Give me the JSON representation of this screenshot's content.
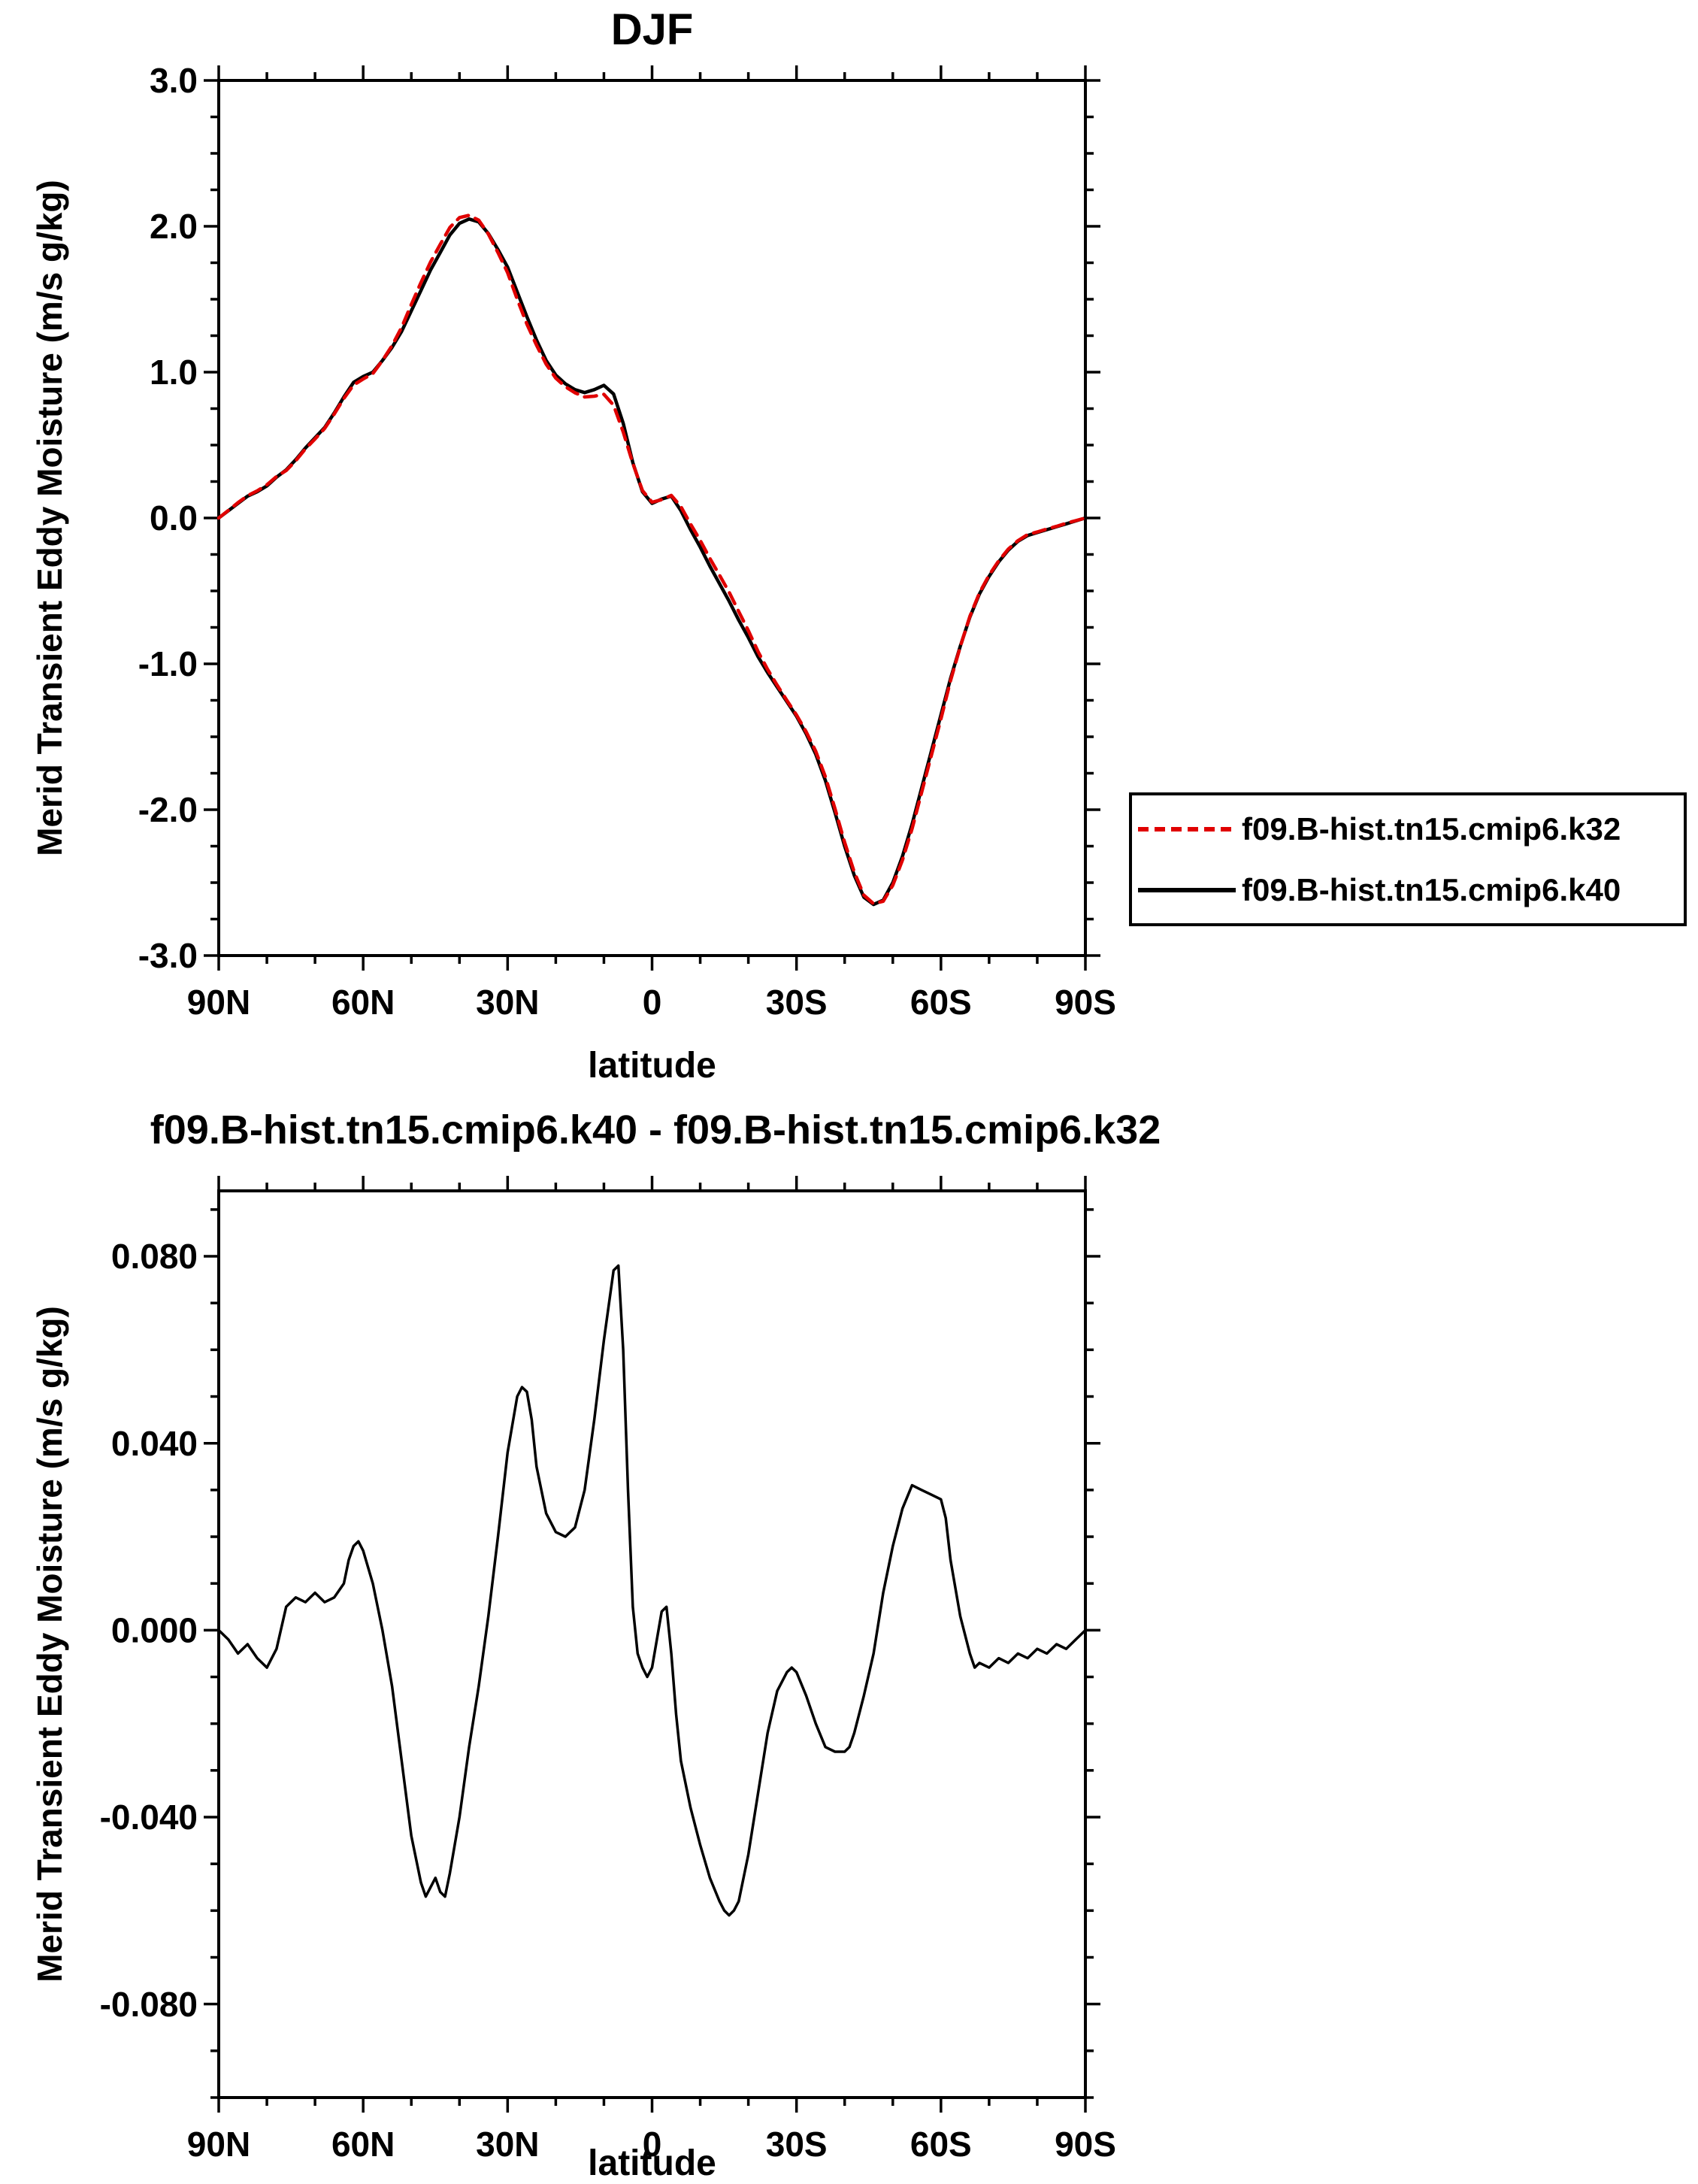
{
  "chart_data": [
    {
      "id": "top",
      "type": "line",
      "title": "DJF",
      "xlabel": "latitude",
      "ylabel": "Merid Transient Eddy Moisture (m/s g/kg)",
      "xlim": [
        90,
        -90
      ],
      "ylim": [
        -3.0,
        3.0
      ],
      "grid": false,
      "legend_position": "outside-right",
      "x_ticks": {
        "values": [
          90,
          60,
          30,
          0,
          -30,
          -60,
          -90
        ],
        "labels": [
          "90N",
          "60N",
          "30N",
          "0",
          "30S",
          "60S",
          "90S"
        ],
        "minor_step": 10
      },
      "y_ticks": {
        "values": [
          3.0,
          2.0,
          1.0,
          0.0,
          -1.0,
          -2.0,
          -3.0
        ],
        "labels": [
          "3.0",
          "2.0",
          "1.0",
          "0.0",
          "-1.0",
          "-2.0",
          "-3.0"
        ],
        "minor_step": 0.25
      },
      "series": [
        {
          "name": "f09.B-hist.tn15.cmip6.k32",
          "color": "#e00000",
          "style": "dashed",
          "x": [
            90,
            88,
            86,
            84,
            82,
            80,
            78,
            76,
            74,
            72,
            70,
            68,
            66,
            64,
            62,
            60,
            58,
            56,
            54,
            52,
            50,
            48,
            46,
            44,
            42,
            40,
            38,
            36,
            34,
            32,
            30,
            28,
            26,
            24,
            22,
            20,
            18,
            16,
            14,
            12,
            10,
            8,
            6,
            4,
            2,
            0,
            -2,
            -4,
            -6,
            -8,
            -10,
            -12,
            -14,
            -16,
            -18,
            -20,
            -22,
            -24,
            -26,
            -28,
            -30,
            -32,
            -34,
            -36,
            -38,
            -40,
            -42,
            -44,
            -46,
            -48,
            -50,
            -52,
            -54,
            -56,
            -58,
            -60,
            -62,
            -64,
            -66,
            -68,
            -70,
            -72,
            -74,
            -76,
            -78,
            -80,
            -82,
            -84,
            -86,
            -88,
            -90
          ],
          "y": [
            0.0,
            0.052,
            0.105,
            0.153,
            0.186,
            0.228,
            0.284,
            0.325,
            0.393,
            0.474,
            0.542,
            0.614,
            0.713,
            0.82,
            0.912,
            0.953,
            0.99,
            1.08,
            1.182,
            1.308,
            1.464,
            1.614,
            1.755,
            1.876,
            1.992,
            2.06,
            2.075,
            2.042,
            1.947,
            1.82,
            1.682,
            1.5,
            1.329,
            1.185,
            1.055,
            0.959,
            0.9,
            0.858,
            0.83,
            0.835,
            0.848,
            0.773,
            0.59,
            0.375,
            0.188,
            0.108,
            0.126,
            0.155,
            0.078,
            -0.042,
            -0.154,
            -0.277,
            -0.392,
            -0.509,
            -0.642,
            -0.772,
            -0.915,
            -1.038,
            -1.147,
            -1.251,
            -1.351,
            -1.466,
            -1.6,
            -1.775,
            -1.994,
            -2.224,
            -2.428,
            -2.586,
            -2.645,
            -2.628,
            -2.518,
            -2.346,
            -2.131,
            -1.88,
            -1.629,
            -1.378,
            -1.115,
            -0.883,
            -0.675,
            -0.513,
            -0.392,
            -0.294,
            -0.213,
            -0.155,
            -0.114,
            -0.096,
            -0.075,
            -0.057,
            -0.036,
            -0.018,
            0.0
          ]
        },
        {
          "name": "f09.B-hist.tn15.cmip6.k40",
          "color": "#000000",
          "style": "solid",
          "x": [
            90,
            88,
            86,
            84,
            82,
            80,
            78,
            76,
            74,
            72,
            70,
            68,
            66,
            64,
            62,
            60,
            58,
            56,
            54,
            52,
            50,
            48,
            46,
            44,
            42,
            40,
            38,
            36,
            34,
            32,
            30,
            28,
            26,
            24,
            22,
            20,
            18,
            16,
            14,
            12,
            10,
            8,
            6,
            4,
            2,
            0,
            -2,
            -4,
            -6,
            -8,
            -10,
            -12,
            -14,
            -16,
            -18,
            -20,
            -22,
            -24,
            -26,
            -28,
            -30,
            -32,
            -34,
            -36,
            -38,
            -40,
            -42,
            -44,
            -46,
            -48,
            -50,
            -52,
            -54,
            -56,
            -58,
            -60,
            -62,
            -64,
            -66,
            -68,
            -70,
            -72,
            -74,
            -76,
            -78,
            -80,
            -82,
            -84,
            -86,
            -88,
            -90
          ],
          "y": [
            0.0,
            0.05,
            0.1,
            0.15,
            0.18,
            0.22,
            0.28,
            0.33,
            0.4,
            0.48,
            0.55,
            0.62,
            0.72,
            0.83,
            0.93,
            0.97,
            1.0,
            1.08,
            1.17,
            1.28,
            1.42,
            1.56,
            1.7,
            1.82,
            1.94,
            2.02,
            2.05,
            2.03,
            1.95,
            1.84,
            1.72,
            1.55,
            1.38,
            1.22,
            1.08,
            0.98,
            0.92,
            0.88,
            0.86,
            0.88,
            0.91,
            0.85,
            0.65,
            0.38,
            0.18,
            0.1,
            0.13,
            0.15,
            0.05,
            -0.08,
            -0.2,
            -0.33,
            -0.45,
            -0.57,
            -0.7,
            -0.82,
            -0.95,
            -1.06,
            -1.16,
            -1.26,
            -1.36,
            -1.48,
            -1.62,
            -1.8,
            -2.02,
            -2.25,
            -2.45,
            -2.6,
            -2.65,
            -2.62,
            -2.5,
            -2.32,
            -2.1,
            -1.85,
            -1.6,
            -1.35,
            -1.1,
            -0.88,
            -0.68,
            -0.52,
            -0.4,
            -0.3,
            -0.22,
            -0.16,
            -0.12,
            -0.1,
            -0.08,
            -0.06,
            -0.04,
            -0.02,
            0.0
          ]
        }
      ]
    },
    {
      "id": "bottom",
      "type": "line",
      "title": "f09.B-hist.tn15.cmip6.k40 - f09.B-hist.tn15.cmip6.k32",
      "xlabel": "latitude",
      "ylabel": "Merid Transient Eddy Moisture (m/s g/kg)",
      "xlim": [
        90,
        -90
      ],
      "ylim": [
        -0.1,
        0.094
      ],
      "grid": false,
      "x_ticks": {
        "values": [
          90,
          60,
          30,
          0,
          -30,
          -60,
          -90
        ],
        "labels": [
          "90N",
          "60N",
          "30N",
          "0",
          "30S",
          "60S",
          "90S"
        ],
        "minor_step": 10
      },
      "y_ticks": {
        "values": [
          0.08,
          0.04,
          0.0,
          -0.04,
          -0.08
        ],
        "labels": [
          "0.080",
          "0.040",
          "0.000",
          "-0.040",
          "-0.080"
        ],
        "minor_step": 0.01
      },
      "series": [
        {
          "name": "f09.B-hist.tn15.cmip6.k40 - f09.B-hist.tn15.cmip6.k32",
          "color": "#000000",
          "style": "solid",
          "x": [
            90,
            88,
            86,
            84,
            82,
            80,
            78,
            76,
            74,
            72,
            70,
            68,
            66,
            64,
            63,
            62,
            61,
            60,
            58,
            56,
            54,
            52,
            50,
            48,
            47,
            46,
            45,
            44,
            43,
            42,
            40,
            38,
            36,
            34,
            32,
            30,
            28,
            27,
            26,
            25,
            24,
            22,
            20,
            18,
            17,
            16,
            14,
            12,
            10,
            8,
            7,
            6,
            5,
            4,
            3,
            2,
            1,
            0,
            -1,
            -2,
            -3,
            -4,
            -5,
            -6,
            -8,
            -10,
            -12,
            -14,
            -15,
            -16,
            -17,
            -18,
            -20,
            -22,
            -24,
            -26,
            -28,
            -29,
            -30,
            -32,
            -34,
            -36,
            -38,
            -40,
            -41,
            -42,
            -44,
            -46,
            -48,
            -50,
            -52,
            -54,
            -56,
            -58,
            -60,
            -61,
            -62,
            -64,
            -66,
            -67,
            -68,
            -70,
            -72,
            -74,
            -76,
            -78,
            -80,
            -82,
            -84,
            -86,
            -88,
            -90
          ],
          "y": [
            0.0,
            -0.002,
            -0.005,
            -0.003,
            -0.006,
            -0.008,
            -0.004,
            0.005,
            0.007,
            0.006,
            0.008,
            0.006,
            0.007,
            0.01,
            0.015,
            0.018,
            0.019,
            0.017,
            0.01,
            0.0,
            -0.012,
            -0.028,
            -0.044,
            -0.054,
            -0.057,
            -0.055,
            -0.053,
            -0.056,
            -0.057,
            -0.052,
            -0.04,
            -0.025,
            -0.012,
            0.003,
            0.02,
            0.038,
            0.05,
            0.052,
            0.051,
            0.045,
            0.035,
            0.025,
            0.021,
            0.02,
            0.021,
            0.022,
            0.03,
            0.045,
            0.062,
            0.077,
            0.078,
            0.06,
            0.03,
            0.005,
            -0.005,
            -0.008,
            -0.01,
            -0.008,
            -0.002,
            0.004,
            0.005,
            -0.005,
            -0.018,
            -0.028,
            -0.038,
            -0.046,
            -0.053,
            -0.058,
            -0.06,
            -0.061,
            -0.06,
            -0.058,
            -0.048,
            -0.035,
            -0.022,
            -0.013,
            -0.009,
            -0.008,
            -0.009,
            -0.014,
            -0.02,
            -0.025,
            -0.026,
            -0.026,
            -0.025,
            -0.022,
            -0.014,
            -0.005,
            0.008,
            0.018,
            0.026,
            0.031,
            0.03,
            0.029,
            0.028,
            0.024,
            0.015,
            0.003,
            -0.005,
            -0.008,
            -0.007,
            -0.008,
            -0.006,
            -0.007,
            -0.005,
            -0.006,
            -0.004,
            -0.005,
            -0.003,
            -0.004,
            -0.002,
            0.0
          ]
        }
      ]
    }
  ]
}
